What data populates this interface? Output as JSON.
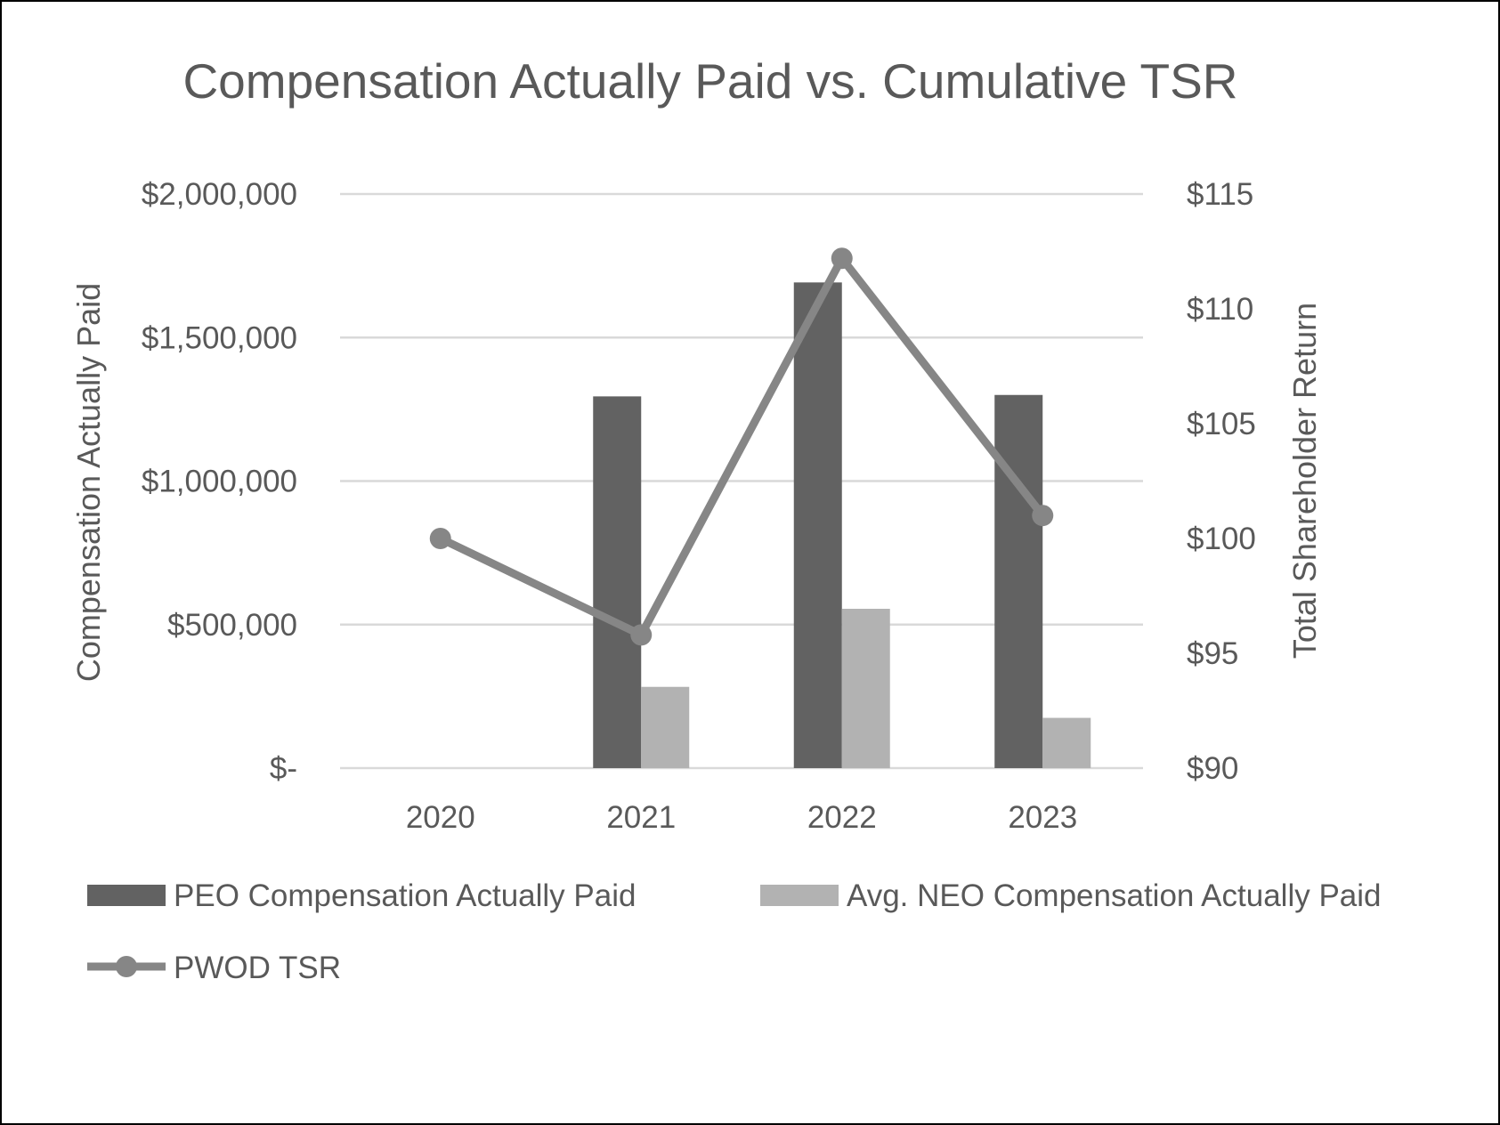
{
  "chart_data": {
    "type": "bar",
    "title": "Compensation Actually Paid vs. Cumulative TSR",
    "categories": [
      "2020",
      "2021",
      "2022",
      "2023"
    ],
    "y_left": {
      "label": "Compensation Actually Paid",
      "range": [
        0,
        2000000
      ],
      "ticks": [
        {
          "value": 0,
          "label": "$-"
        },
        {
          "value": 500000,
          "label": "$500,000"
        },
        {
          "value": 1000000,
          "label": "$1,000,000"
        },
        {
          "value": 1500000,
          "label": "$1,500,000"
        },
        {
          "value": 2000000,
          "label": "$2,000,000"
        }
      ]
    },
    "y_right": {
      "label": "Total Shareholder Return",
      "range": [
        90,
        115
      ],
      "ticks": [
        {
          "value": 90,
          "label": "$90"
        },
        {
          "value": 95,
          "label": "$95"
        },
        {
          "value": 100,
          "label": "$100"
        },
        {
          "value": 105,
          "label": "$105"
        },
        {
          "value": 110,
          "label": "$110"
        },
        {
          "value": 115,
          "label": "$115"
        }
      ]
    },
    "grid": true,
    "legend_position": "bottom",
    "series": [
      {
        "name": "PEO Compensation Actually Paid",
        "type": "bar",
        "axis": "left",
        "color": "#626262",
        "values": [
          null,
          1295000,
          1692000,
          1300000
        ]
      },
      {
        "name": "Avg. NEO Compensation Actually Paid",
        "type": "bar",
        "axis": "left",
        "color": "#b2b2b2",
        "values": [
          null,
          283000,
          555000,
          175000
        ]
      },
      {
        "name": "PWOD TSR",
        "type": "line",
        "axis": "right",
        "color": "#868686",
        "values": [
          100,
          95.8,
          112.2,
          101
        ]
      }
    ]
  }
}
